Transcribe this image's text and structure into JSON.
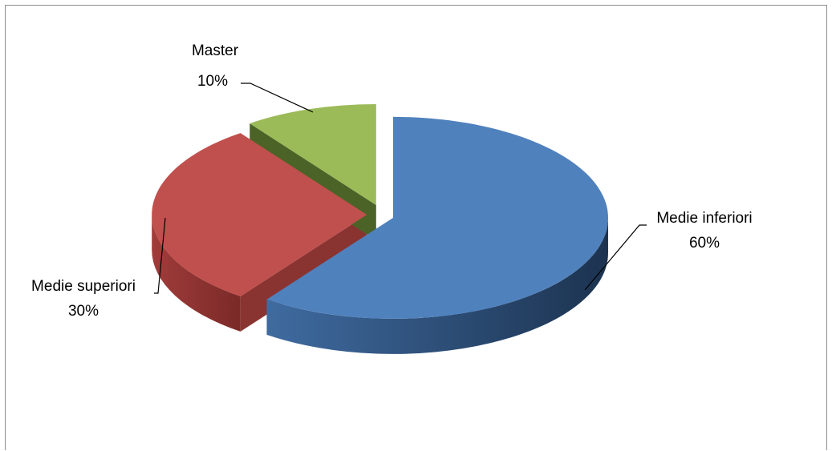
{
  "chart_data": {
    "type": "pie",
    "style": "3d-exploded",
    "title": "",
    "slices": [
      {
        "name": "Medie inferiori",
        "value": 60,
        "label": "60%",
        "color": "#4F81BD"
      },
      {
        "name": "Medie superiori",
        "value": 30,
        "label": "30%",
        "color": "#C0504D"
      },
      {
        "name": "Master",
        "value": 10,
        "label": "10%",
        "color": "#9BBB59"
      }
    ],
    "legend": "none"
  }
}
